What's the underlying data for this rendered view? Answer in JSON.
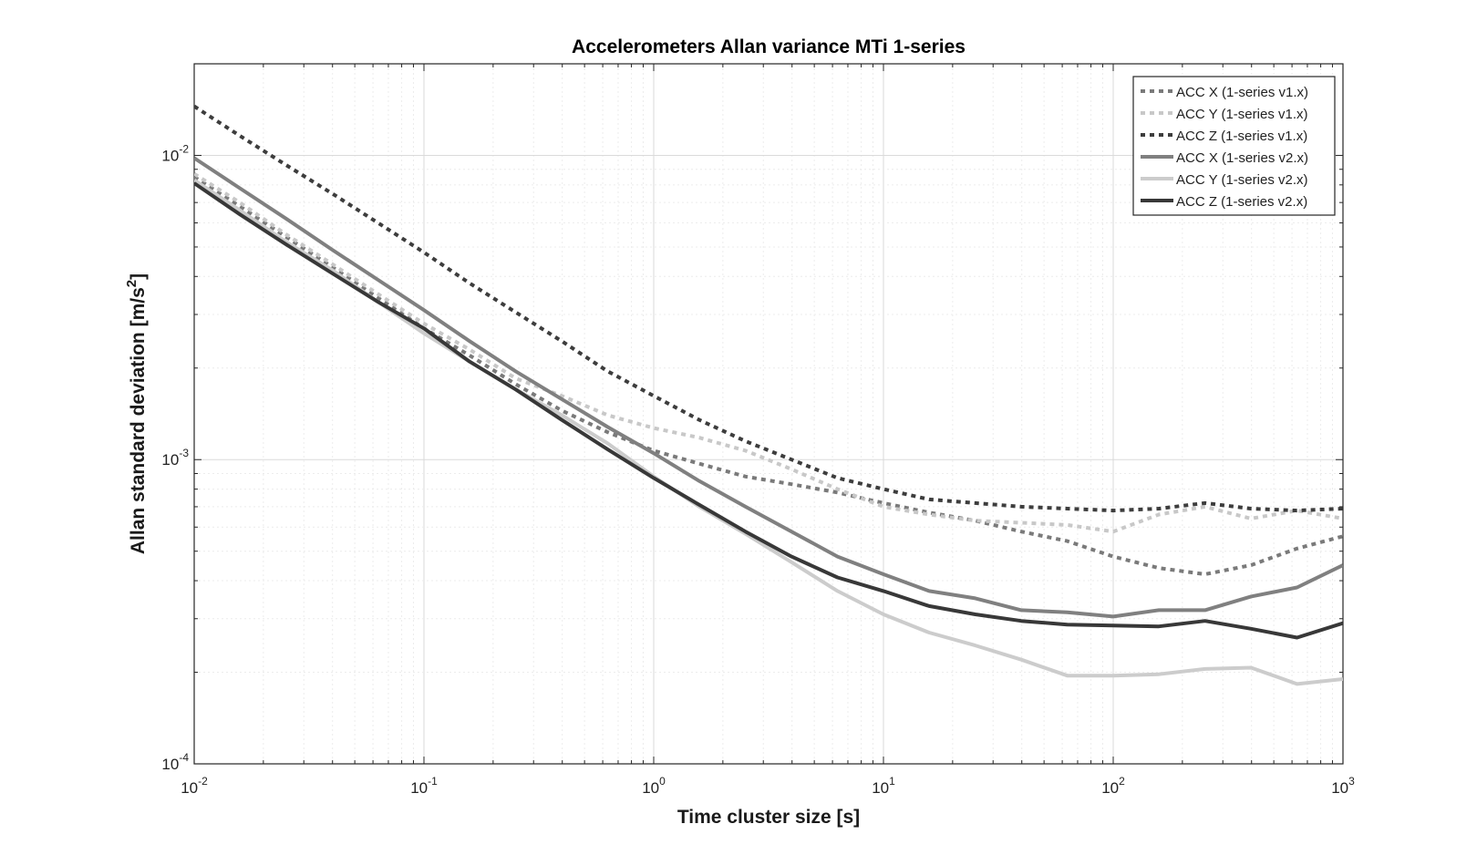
{
  "chart_data": {
    "type": "line",
    "title": "Accelerometers Allan variance MTi 1-series",
    "xlabel": "Time cluster size [s]",
    "ylabel": "Allan standard deviation [m/s",
    "ylabel_sup": "2",
    "ylabel_end": "]",
    "xscale": "log",
    "yscale": "log",
    "xlim": [
      0.01,
      1000
    ],
    "ylim": [
      0.0001,
      0.02
    ],
    "grid": true,
    "legend_position": "top-right",
    "x_ticks": [
      {
        "base": "10",
        "exp": "-2",
        "value": 0.01
      },
      {
        "base": "10",
        "exp": "-1",
        "value": 0.1
      },
      {
        "base": "10",
        "exp": "0",
        "value": 1
      },
      {
        "base": "10",
        "exp": "1",
        "value": 10
      },
      {
        "base": "10",
        "exp": "2",
        "value": 100
      },
      {
        "base": "10",
        "exp": "3",
        "value": 1000
      }
    ],
    "y_ticks": [
      {
        "base": "10",
        "exp": "-4",
        "value": 0.0001
      },
      {
        "base": "10",
        "exp": "-3",
        "value": 0.001
      },
      {
        "base": "10",
        "exp": "-2",
        "value": 0.01
      }
    ],
    "series": [
      {
        "name": "ACC X (1-series v1.x)",
        "color": "#7a7a7a",
        "style": "dotted",
        "points": [
          [
            0.01,
            0.0085
          ],
          [
            0.0158,
            0.0068
          ],
          [
            0.0251,
            0.0054
          ],
          [
            0.0398,
            0.0043
          ],
          [
            0.0631,
            0.0034
          ],
          [
            0.1,
            0.0027
          ],
          [
            0.158,
            0.0022
          ],
          [
            0.251,
            0.00177
          ],
          [
            0.398,
            0.00145
          ],
          [
            0.631,
            0.00123
          ],
          [
            1.0,
            0.00107
          ],
          [
            1.58,
            0.00097
          ],
          [
            2.51,
            0.00088
          ],
          [
            3.98,
            0.00083
          ],
          [
            6.31,
            0.00078
          ],
          [
            10,
            0.00072
          ],
          [
            15.8,
            0.00067
          ],
          [
            25.1,
            0.00063
          ],
          [
            39.8,
            0.00058
          ],
          [
            63.1,
            0.00054
          ],
          [
            100,
            0.00048
          ],
          [
            158,
            0.00044
          ],
          [
            251,
            0.00042
          ],
          [
            398,
            0.00045
          ],
          [
            631,
            0.00051
          ],
          [
            1000,
            0.00056
          ]
        ]
      },
      {
        "name": "ACC Y (1-series v1.x)",
        "color": "#c8c8c8",
        "style": "dotted",
        "points": [
          [
            0.01,
            0.0087
          ],
          [
            0.0158,
            0.007
          ],
          [
            0.0251,
            0.0055
          ],
          [
            0.0398,
            0.0044
          ],
          [
            0.0631,
            0.0035
          ],
          [
            0.1,
            0.0028
          ],
          [
            0.158,
            0.0023
          ],
          [
            0.251,
            0.00185
          ],
          [
            0.398,
            0.00162
          ],
          [
            0.631,
            0.0014
          ],
          [
            1.0,
            0.00127
          ],
          [
            1.58,
            0.00118
          ],
          [
            2.51,
            0.00107
          ],
          [
            3.98,
            0.00093
          ],
          [
            6.31,
            0.0008
          ],
          [
            10,
            0.0007
          ],
          [
            15.8,
            0.00066
          ],
          [
            25.1,
            0.00063
          ],
          [
            39.8,
            0.00062
          ],
          [
            63.1,
            0.00061
          ],
          [
            100,
            0.00058
          ],
          [
            158,
            0.00066
          ],
          [
            251,
            0.0007
          ],
          [
            398,
            0.00064
          ],
          [
            631,
            0.00068
          ],
          [
            1000,
            0.00064
          ]
        ]
      },
      {
        "name": "ACC Z (1-series v1.x)",
        "color": "#3d3d3d",
        "style": "dotted",
        "points": [
          [
            0.01,
            0.0145
          ],
          [
            0.0158,
            0.0116
          ],
          [
            0.0251,
            0.0093
          ],
          [
            0.0398,
            0.0075
          ],
          [
            0.0631,
            0.006
          ],
          [
            0.1,
            0.0048
          ],
          [
            0.158,
            0.0038
          ],
          [
            0.251,
            0.00305
          ],
          [
            0.398,
            0.00245
          ],
          [
            0.631,
            0.00195
          ],
          [
            1.0,
            0.00162
          ],
          [
            1.58,
            0.00135
          ],
          [
            2.51,
            0.00115
          ],
          [
            3.98,
            0.001
          ],
          [
            6.31,
            0.00087
          ],
          [
            10,
            0.0008
          ],
          [
            15.8,
            0.00074
          ],
          [
            25.1,
            0.00072
          ],
          [
            39.8,
            0.0007
          ],
          [
            63.1,
            0.00069
          ],
          [
            100,
            0.00068
          ],
          [
            158,
            0.00069
          ],
          [
            251,
            0.00072
          ],
          [
            398,
            0.00069
          ],
          [
            631,
            0.00068
          ],
          [
            1000,
            0.00069
          ]
        ]
      },
      {
        "name": "ACC X (1-series v2.x)",
        "color": "#808080",
        "style": "solid",
        "points": [
          [
            0.01,
            0.0098
          ],
          [
            0.0158,
            0.0078
          ],
          [
            0.0251,
            0.0062
          ],
          [
            0.0398,
            0.0049
          ],
          [
            0.0631,
            0.0039
          ],
          [
            0.1,
            0.0031
          ],
          [
            0.158,
            0.00245
          ],
          [
            0.251,
            0.00195
          ],
          [
            0.398,
            0.00158
          ],
          [
            0.631,
            0.00128
          ],
          [
            1.0,
            0.00105
          ],
          [
            1.58,
            0.00085
          ],
          [
            2.51,
            0.0007
          ],
          [
            3.98,
            0.00058
          ],
          [
            6.31,
            0.00048
          ],
          [
            10,
            0.00042
          ],
          [
            15.8,
            0.00037
          ],
          [
            25.1,
            0.00035
          ],
          [
            39.8,
            0.00032
          ],
          [
            63.1,
            0.000315
          ],
          [
            100,
            0.000305
          ],
          [
            158,
            0.00032
          ],
          [
            251,
            0.00032
          ],
          [
            398,
            0.000355
          ],
          [
            631,
            0.00038
          ],
          [
            1000,
            0.00045
          ]
        ]
      },
      {
        "name": "ACC Y (1-series v2.x)",
        "color": "#cccccc",
        "style": "solid",
        "points": [
          [
            0.01,
            0.0083
          ],
          [
            0.0158,
            0.0066
          ],
          [
            0.0251,
            0.0052
          ],
          [
            0.0398,
            0.0042
          ],
          [
            0.0631,
            0.0033
          ],
          [
            0.1,
            0.0026
          ],
          [
            0.158,
            0.0021
          ],
          [
            0.251,
            0.0017
          ],
          [
            0.398,
            0.0014
          ],
          [
            0.631,
            0.00113
          ],
          [
            1.0,
            0.00088
          ],
          [
            1.58,
            0.0007
          ],
          [
            2.51,
            0.00057
          ],
          [
            3.98,
            0.00046
          ],
          [
            6.31,
            0.00037
          ],
          [
            10,
            0.00031
          ],
          [
            15.8,
            0.00027
          ],
          [
            25.1,
            0.000245
          ],
          [
            39.8,
            0.00022
          ],
          [
            63.1,
            0.000195
          ],
          [
            100,
            0.000195
          ],
          [
            158,
            0.000197
          ],
          [
            251,
            0.000205
          ],
          [
            398,
            0.000207
          ],
          [
            631,
            0.000183
          ],
          [
            1000,
            0.00019
          ]
        ]
      },
      {
        "name": "ACC Z (1-series v2.x)",
        "color": "#383838",
        "style": "solid",
        "points": [
          [
            0.01,
            0.0081
          ],
          [
            0.0158,
            0.0064
          ],
          [
            0.0251,
            0.0051
          ],
          [
            0.0398,
            0.0041
          ],
          [
            0.0631,
            0.0033
          ],
          [
            0.1,
            0.0027
          ],
          [
            0.158,
            0.0021
          ],
          [
            0.251,
            0.0017
          ],
          [
            0.398,
            0.00135
          ],
          [
            0.631,
            0.00108
          ],
          [
            1.0,
            0.00087
          ],
          [
            1.58,
            0.00071
          ],
          [
            2.51,
            0.00058
          ],
          [
            3.98,
            0.00048
          ],
          [
            6.31,
            0.00041
          ],
          [
            10,
            0.00037
          ],
          [
            15.8,
            0.00033
          ],
          [
            25.1,
            0.00031
          ],
          [
            39.8,
            0.000295
          ],
          [
            63.1,
            0.000287
          ],
          [
            100,
            0.000285
          ],
          [
            158,
            0.000283
          ],
          [
            251,
            0.000295
          ],
          [
            398,
            0.000278
          ],
          [
            631,
            0.00026
          ],
          [
            1000,
            0.00029
          ]
        ]
      }
    ]
  }
}
